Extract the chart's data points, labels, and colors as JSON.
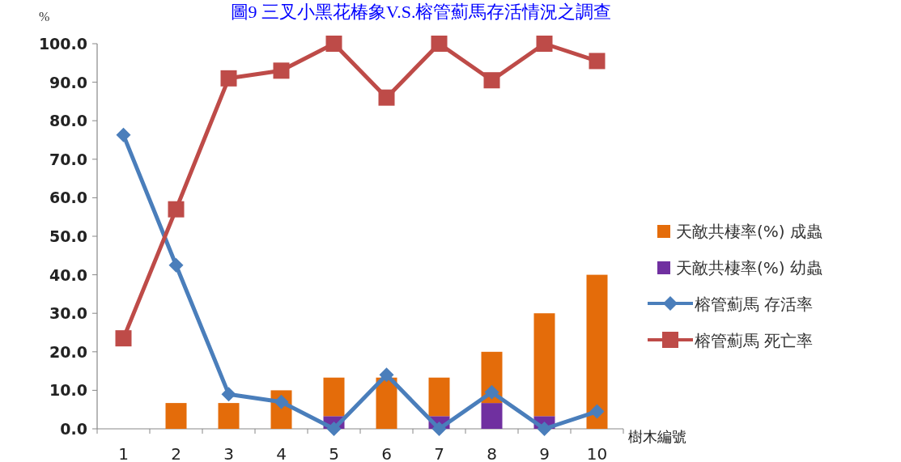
{
  "chart_data": {
    "type": "bar",
    "title": "圖9 三叉小黑花椿象V.S.榕管薊馬存活情況之調查",
    "ylabel": "%",
    "xlabel": "樹木編號",
    "categories": [
      "1",
      "2",
      "3",
      "4",
      "5",
      "6",
      "7",
      "8",
      "9",
      "10"
    ],
    "stacked": true,
    "grid": false,
    "legend": "right",
    "ylim": [
      0,
      100
    ],
    "yticks": [
      {
        "value": 0,
        "label": "0.0"
      },
      {
        "value": 10,
        "label": "10.0"
      },
      {
        "value": 20,
        "label": "20.0"
      },
      {
        "value": 30,
        "label": "30.0"
      },
      {
        "value": 40,
        "label": "40.0"
      },
      {
        "value": 50,
        "label": "50.0"
      },
      {
        "value": 60,
        "label": "60.0"
      },
      {
        "value": 70,
        "label": "70.0"
      },
      {
        "value": 80,
        "label": "80.0"
      },
      {
        "value": 90,
        "label": "90.0"
      },
      {
        "value": 100,
        "label": "100.0"
      }
    ],
    "series": [
      {
        "name": "天敵共棲率(%) 幼蟲",
        "color": "#7030a0",
        "values": [
          0,
          0,
          0,
          0,
          3.3,
          0,
          3.3,
          6.7,
          3.3,
          0
        ]
      },
      {
        "name": "天敵共棲率(%) 成蟲",
        "color": "#e46c0a",
        "values": [
          0,
          6.7,
          6.7,
          10,
          10,
          13.3,
          10,
          13.3,
          26.7,
          40
        ]
      },
      {
        "name": "榕管薊馬 存活率",
        "type": "line",
        "marker": "diamond",
        "color": "#4a7ebb",
        "values": [
          76.3,
          42.5,
          9,
          7,
          0,
          14,
          0,
          9.5,
          0,
          4.5
        ]
      },
      {
        "name": "榕管薊馬 死亡率",
        "type": "line",
        "marker": "square",
        "color": "#be4b48",
        "values": [
          23.5,
          57,
          91,
          93,
          100,
          86,
          100,
          90.5,
          100,
          95.5
        ]
      }
    ]
  }
}
